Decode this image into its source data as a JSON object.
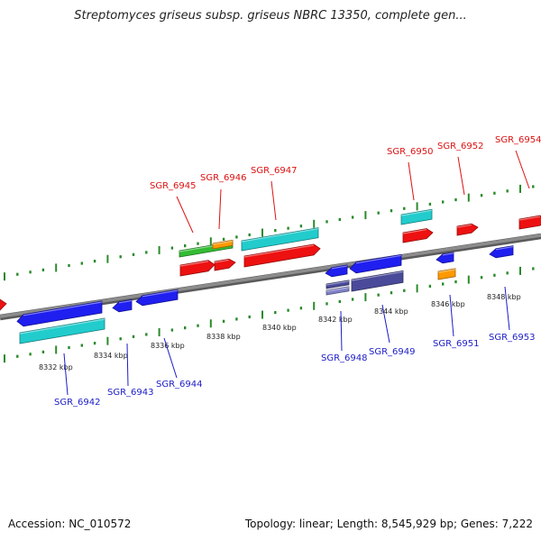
{
  "title": "Streptomyces griseus subsp. griseus NBRC 13350, complete gen...",
  "accession": "Accession: NC_010572",
  "topology": "Topology: linear; Length: 8,545,929 bp; Genes: 7,222",
  "colors": {
    "backbone": "#8c8c8c",
    "gene_red": "#ee1111",
    "gene_blue": "#1f1ff0",
    "cds_cyan": "#22cccc",
    "cds_green": "#33bb33",
    "cds_orange": "#ff9900",
    "cds_slate": "#4a4a9a",
    "tick": "#2a8a2a",
    "label_red": "#dd1111",
    "label_blue": "#1c1cc8"
  },
  "map": {
    "kbp_labels": [
      "8332 kbp",
      "8334 kbp",
      "8336 kbp",
      "8338 kbp",
      "8340 kbp",
      "8342 kbp",
      "8344 kbp",
      "8346 kbp",
      "8348 kbp"
    ],
    "forward_genes": [
      "SGR_6945",
      "SGR_6946",
      "SGR_6947",
      "SGR_6950",
      "SGR_6952",
      "SGR_6954"
    ],
    "reverse_genes": [
      "SGR_6942",
      "SGR_6943",
      "SGR_6944",
      "SGR_6948",
      "SGR_6949",
      "SGR_6951",
      "SGR_6953"
    ]
  }
}
